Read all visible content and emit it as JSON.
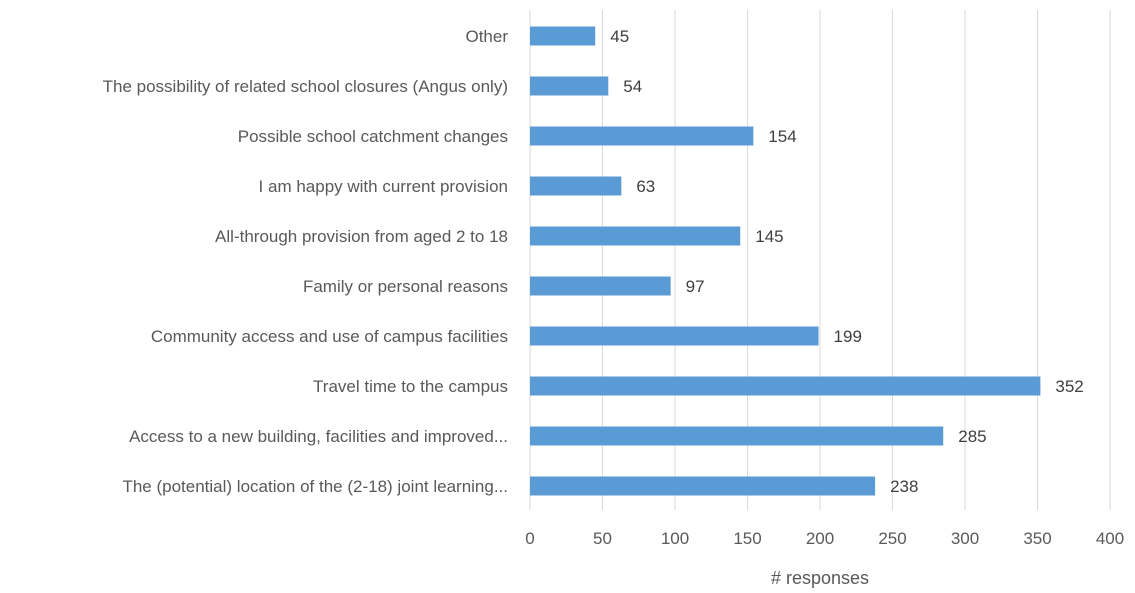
{
  "chart_data": {
    "type": "bar",
    "orientation": "horizontal",
    "title": "",
    "xlabel": "# responses",
    "ylabel": "",
    "xlim": [
      0,
      400
    ],
    "x_ticks": [
      0,
      50,
      100,
      150,
      200,
      250,
      300,
      350,
      400
    ],
    "gridlines": true,
    "legend": "none",
    "bar_color": "#5b9bd5",
    "categories": [
      "Other",
      "The possibility of related school closures (Angus only)",
      "Possible school catchment changes",
      "I am happy with current provision",
      "All-through provision from aged 2 to 18",
      "Family or personal reasons",
      "Community access and use of campus facilities",
      "Travel time to the campus",
      "Access to a new building, facilities and improved...",
      "The (potential) location of the (2-18) joint learning..."
    ],
    "values": [
      45,
      54,
      154,
      63,
      145,
      97,
      199,
      352,
      285,
      238
    ]
  }
}
